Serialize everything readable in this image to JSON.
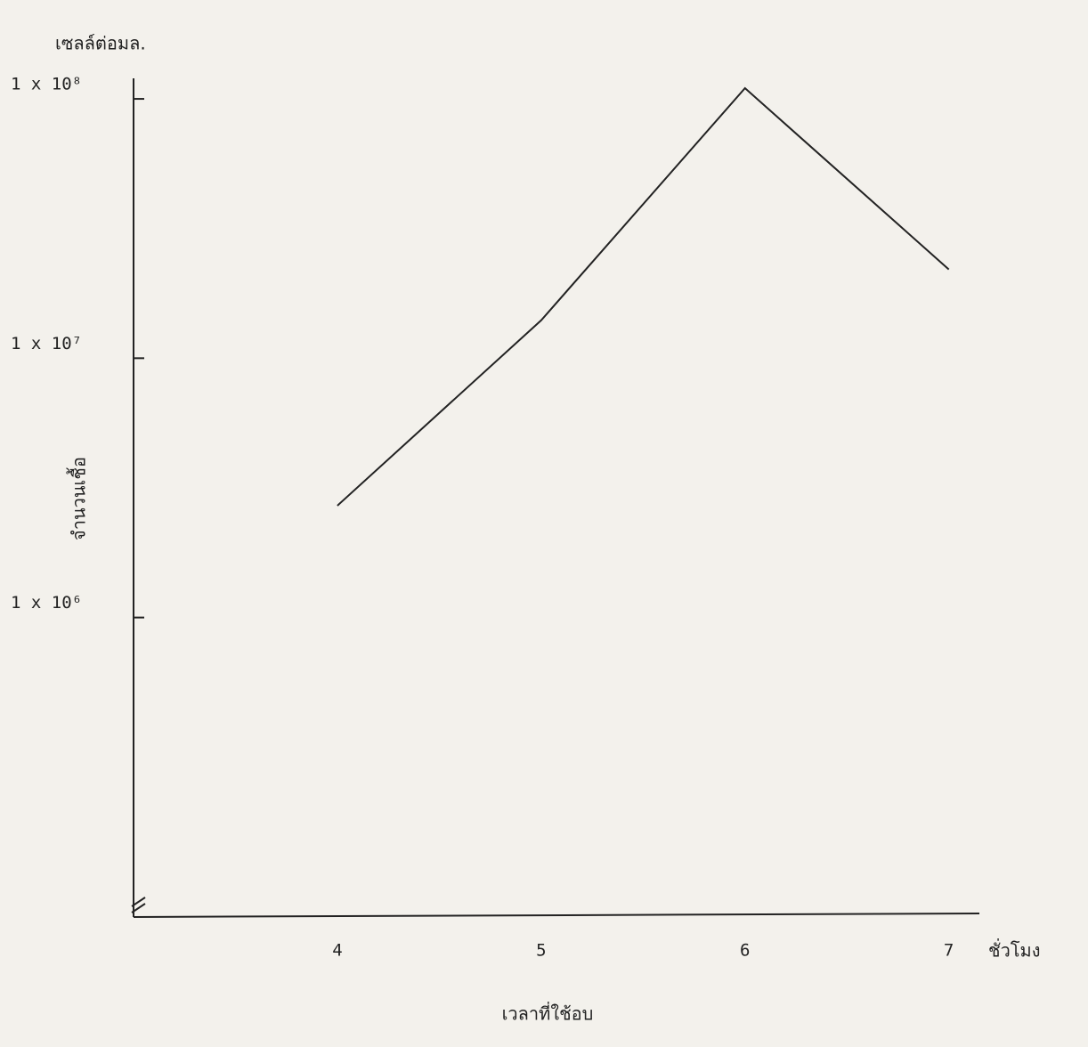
{
  "chart_data": {
    "type": "line",
    "y_unit_label": "เซลล์ต่อมล.",
    "y_axis_label": "จำนวนเชื้อ",
    "x_unit_label": "ชั่วโมง",
    "x_axis_label": "เวลาที่ใช้อบ",
    "x": [
      4,
      5,
      6,
      7
    ],
    "series": [
      {
        "color": "#222222",
        "values": [
          2700000,
          14000000,
          110000000,
          22000000
        ]
      }
    ],
    "xlim": [
      3,
      7.15
    ],
    "xticks": [
      4,
      5,
      6,
      7
    ],
    "ylim": [
      70000,
      120000000
    ],
    "yscale": "log",
    "yticks": [
      {
        "value": 1000000,
        "label": "1 x 10⁶"
      },
      {
        "value": 10000000,
        "label": "1 x 10⁷"
      },
      {
        "value": 100000000,
        "label": "1 x 10⁸"
      }
    ]
  }
}
